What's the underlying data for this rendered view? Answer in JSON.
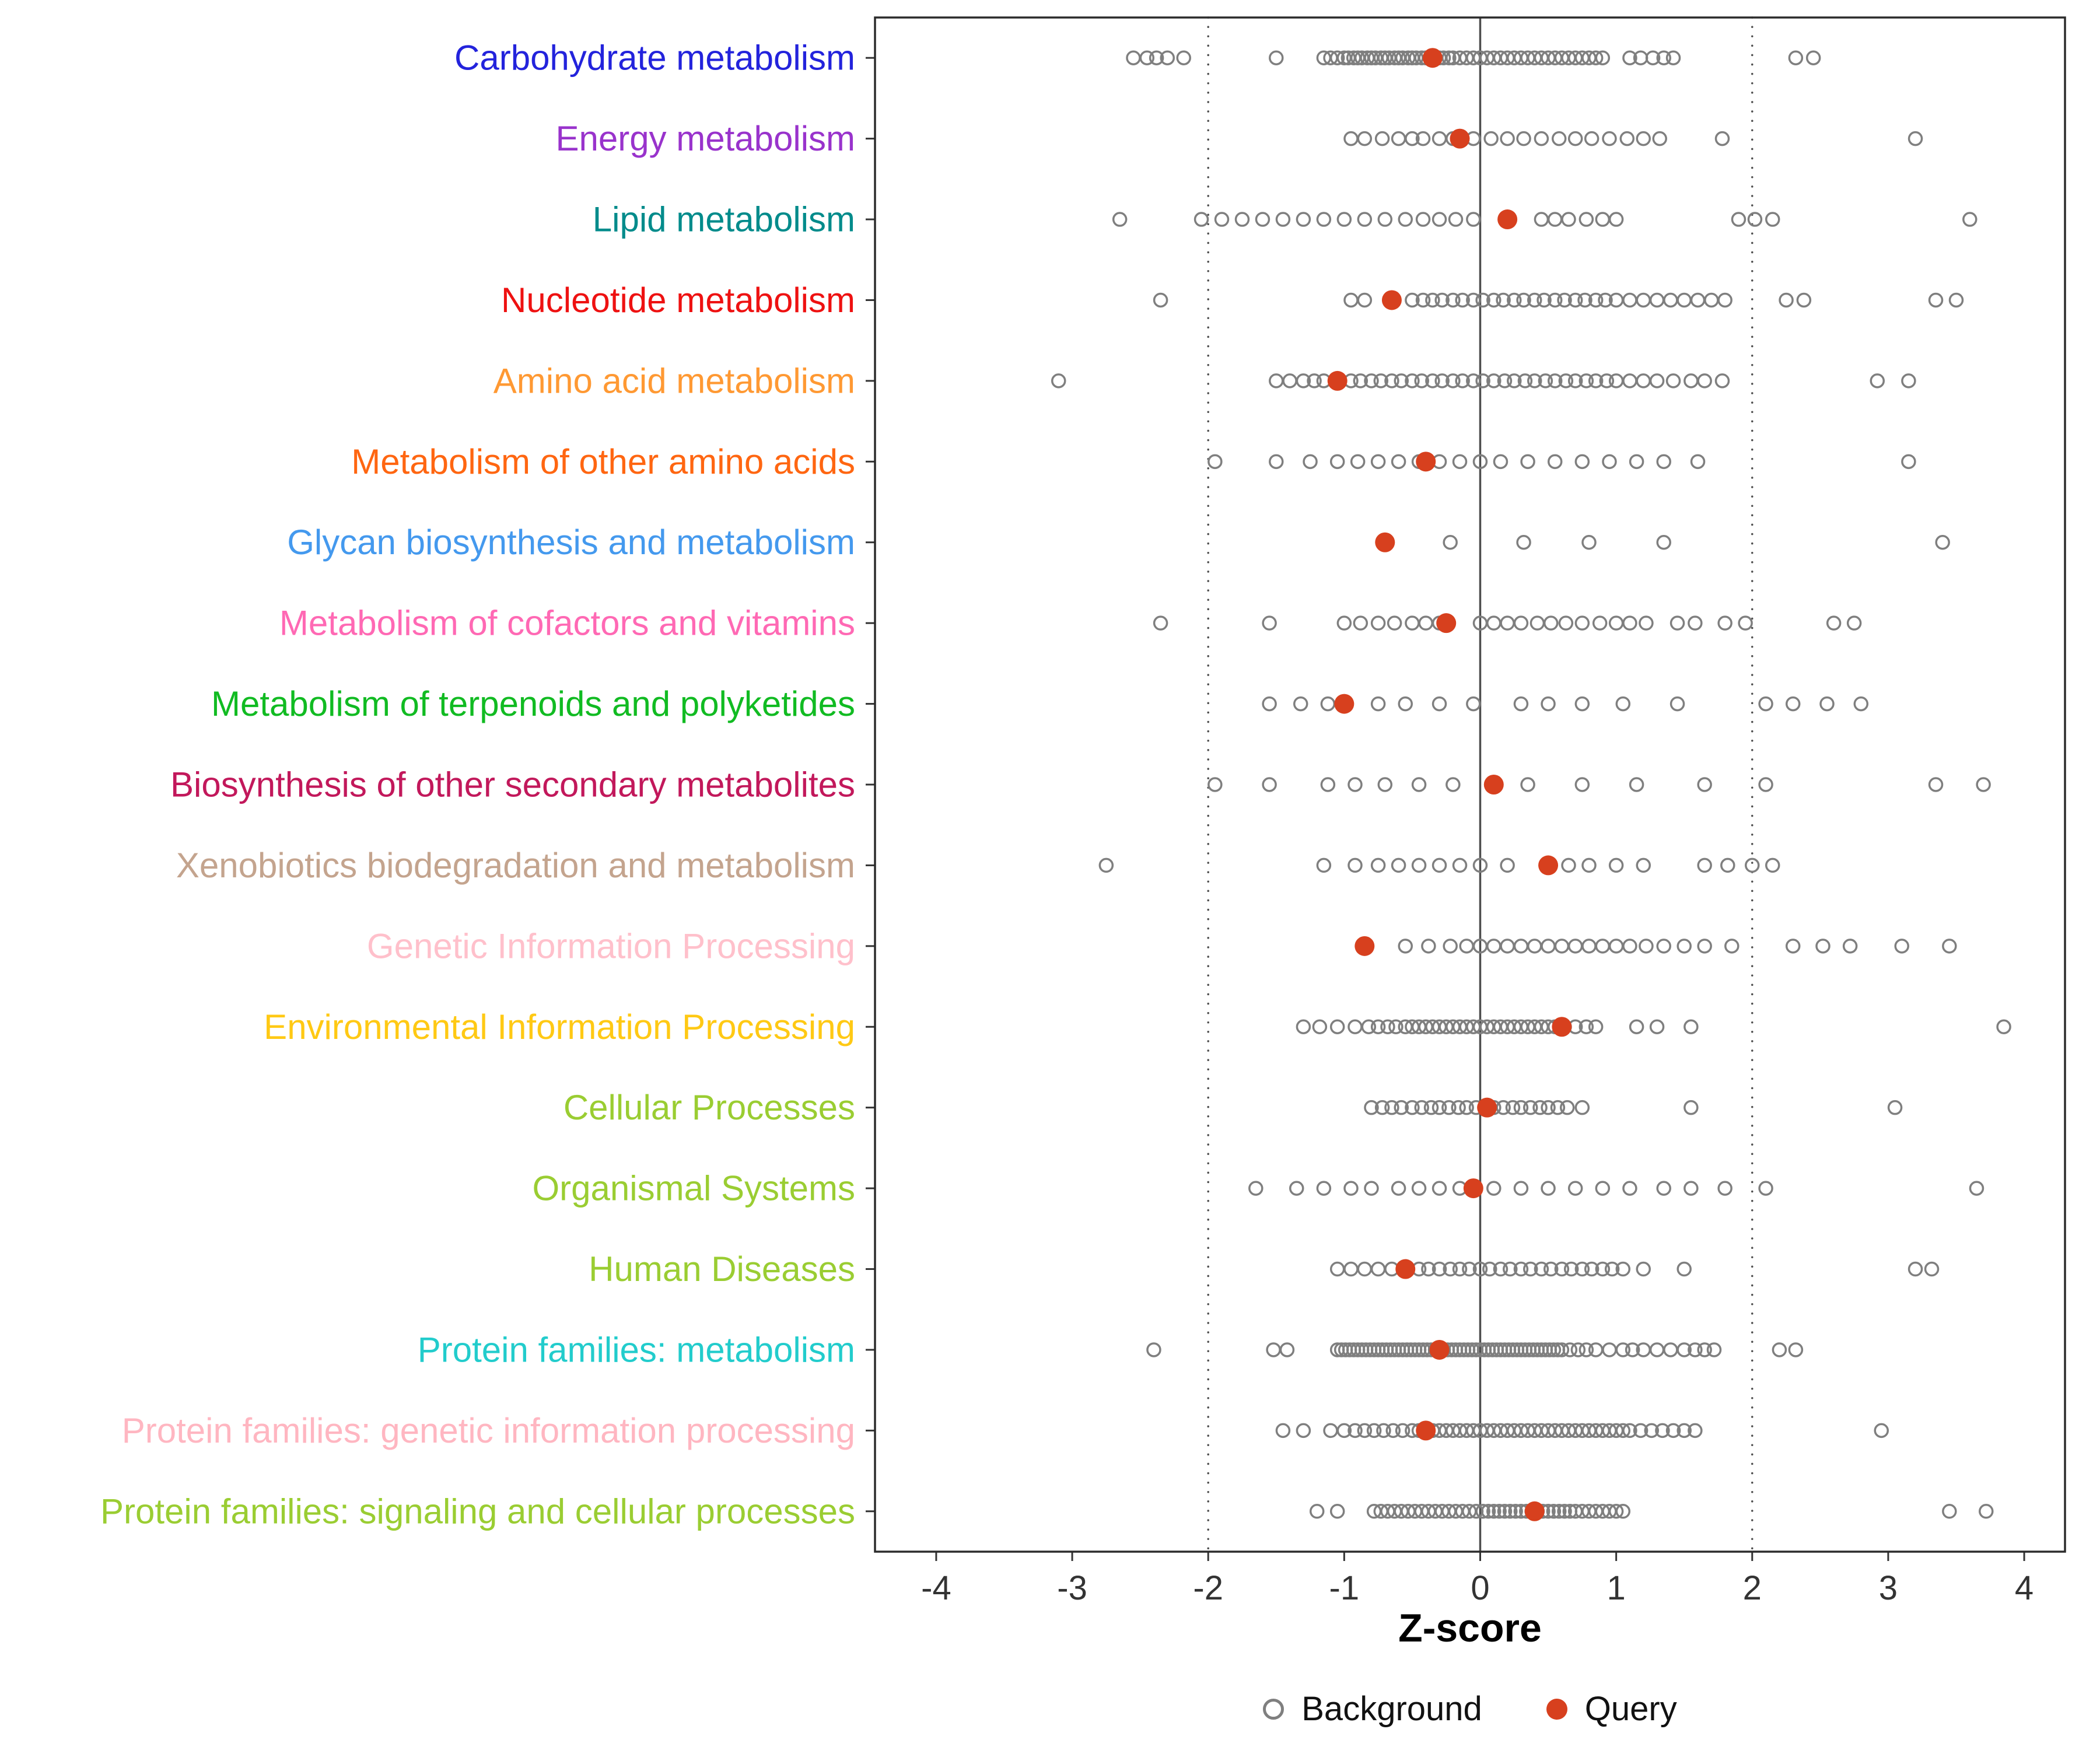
{
  "chart_data": {
    "type": "scatter",
    "title": "",
    "xlabel": "Z-score",
    "ylabel": "",
    "xlim": [
      -4.45,
      4.3
    ],
    "x_ticks": [
      -4,
      -3,
      -2,
      -1,
      0,
      1,
      2,
      3,
      4
    ],
    "grid": false,
    "reference_lines": {
      "solid": [
        0
      ],
      "dotted": [
        -2,
        2
      ]
    },
    "style": {
      "background_marker_color": "#7F7F7F",
      "query_marker_color": "#D7401E",
      "axis_text_color": "#333333",
      "panel_border_color": "#2B2B2B",
      "reference_line_color": "#4D4D4D"
    },
    "legend": [
      {
        "label": "Background",
        "marker": "open-circle",
        "color": "#7F7F7F"
      },
      {
        "label": "Query",
        "marker": "filled-circle",
        "color": "#D7401E"
      }
    ],
    "rows": [
      {
        "category": "Carbohydrate metabolism",
        "color": "#2323DC",
        "query": -0.35,
        "background": [
          -2.55,
          -2.45,
          -2.38,
          -2.3,
          -2.18,
          -1.5,
          -1.15,
          -1.1,
          -1.05,
          -1.0,
          -0.97,
          -0.93,
          -0.9,
          -0.87,
          -0.83,
          -0.8,
          -0.77,
          -0.73,
          -0.7,
          -0.67,
          -0.63,
          -0.6,
          -0.57,
          -0.53,
          -0.5,
          -0.47,
          -0.43,
          -0.4,
          -0.37,
          -0.33,
          -0.3,
          -0.27,
          -0.23,
          -0.2,
          -0.15,
          -0.1,
          -0.05,
          0.0,
          0.05,
          0.1,
          0.15,
          0.2,
          0.25,
          0.3,
          0.35,
          0.4,
          0.45,
          0.5,
          0.55,
          0.6,
          0.65,
          0.7,
          0.75,
          0.8,
          0.85,
          0.9,
          1.1,
          1.18,
          1.27,
          1.35,
          1.42,
          2.32,
          2.45
        ]
      },
      {
        "category": "Energy metabolism",
        "color": "#9933CC",
        "query": -0.15,
        "background": [
          -0.95,
          -0.85,
          -0.72,
          -0.6,
          -0.5,
          -0.42,
          -0.3,
          -0.2,
          -0.05,
          0.08,
          0.2,
          0.32,
          0.45,
          0.58,
          0.7,
          0.82,
          0.95,
          1.08,
          1.2,
          1.32,
          1.78,
          3.2
        ]
      },
      {
        "category": "Lipid metabolism",
        "color": "#008B8B",
        "query": 0.2,
        "background": [
          -2.65,
          -2.05,
          -1.9,
          -1.75,
          -1.6,
          -1.45,
          -1.3,
          -1.15,
          -1.0,
          -0.85,
          -0.7,
          -0.55,
          -0.42,
          -0.3,
          -0.18,
          -0.05,
          0.45,
          0.55,
          0.65,
          0.78,
          0.9,
          1.0,
          1.9,
          2.02,
          2.15,
          3.6
        ]
      },
      {
        "category": "Nucleotide metabolism",
        "color": "#EE1111",
        "query": -0.65,
        "background": [
          -2.35,
          -0.95,
          -0.85,
          -0.5,
          -0.42,
          -0.35,
          -0.28,
          -0.2,
          -0.13,
          -0.05,
          0.02,
          0.1,
          0.17,
          0.25,
          0.32,
          0.4,
          0.47,
          0.55,
          0.62,
          0.7,
          0.77,
          0.85,
          0.92,
          1.0,
          1.1,
          1.2,
          1.3,
          1.4,
          1.5,
          1.6,
          1.7,
          1.8,
          2.25,
          2.38,
          3.35,
          3.5
        ]
      },
      {
        "category": "Amino acid metabolism",
        "color": "#FF9933",
        "query": -1.05,
        "background": [
          -3.1,
          -1.5,
          -1.4,
          -1.3,
          -1.22,
          -1.15,
          -0.95,
          -0.88,
          -0.8,
          -0.73,
          -0.65,
          -0.58,
          -0.5,
          -0.43,
          -0.35,
          -0.28,
          -0.2,
          -0.13,
          -0.05,
          0.02,
          0.1,
          0.18,
          0.25,
          0.33,
          0.4,
          0.48,
          0.55,
          0.63,
          0.7,
          0.78,
          0.85,
          0.93,
          1.0,
          1.1,
          1.2,
          1.3,
          1.42,
          1.55,
          1.65,
          1.78,
          2.92,
          3.15
        ]
      },
      {
        "category": "Metabolism of other amino acids",
        "color": "#FF6611",
        "query": -0.4,
        "background": [
          -1.95,
          -1.5,
          -1.25,
          -1.05,
          -0.9,
          -0.75,
          -0.6,
          -0.45,
          -0.3,
          -0.15,
          0.0,
          0.15,
          0.35,
          0.55,
          0.75,
          0.95,
          1.15,
          1.35,
          1.6,
          3.15
        ]
      },
      {
        "category": "Glycan biosynthesis and metabolism",
        "color": "#4499EE",
        "query": -0.7,
        "background": [
          -0.22,
          0.32,
          0.8,
          1.35,
          3.4
        ]
      },
      {
        "category": "Metabolism of cofactors and vitamins",
        "color": "#FF69B4",
        "query": -0.25,
        "background": [
          -2.35,
          -1.55,
          -1.0,
          -0.88,
          -0.75,
          -0.63,
          -0.5,
          -0.4,
          -0.3,
          0.0,
          0.1,
          0.2,
          0.3,
          0.42,
          0.52,
          0.63,
          0.75,
          0.88,
          1.0,
          1.1,
          1.22,
          1.45,
          1.58,
          1.8,
          1.95,
          2.6,
          2.75
        ]
      },
      {
        "category": "Metabolism of terpenoids and polyketides",
        "color": "#11BB22",
        "query": -1.0,
        "background": [
          -1.55,
          -1.32,
          -1.12,
          -0.75,
          -0.55,
          -0.3,
          -0.05,
          0.3,
          0.5,
          0.75,
          1.05,
          1.45,
          2.1,
          2.3,
          2.55,
          2.8
        ]
      },
      {
        "category": "Biosynthesis of other secondary metabolites",
        "color": "#C2185B",
        "query": 0.1,
        "background": [
          -1.95,
          -1.55,
          -1.12,
          -0.92,
          -0.7,
          -0.45,
          -0.2,
          0.35,
          0.75,
          1.15,
          1.65,
          2.1,
          3.35,
          3.7
        ]
      },
      {
        "category": "Xenobiotics biodegradation and metabolism",
        "color": "#C4A48E",
        "query": 0.5,
        "background": [
          -2.75,
          -1.15,
          -0.92,
          -0.75,
          -0.6,
          -0.45,
          -0.3,
          -0.15,
          0.0,
          0.2,
          0.65,
          0.8,
          1.0,
          1.2,
          1.65,
          1.82,
          2.0,
          2.15
        ]
      },
      {
        "category": "Genetic Information Processing",
        "color": "#FFC0CB",
        "query": -0.85,
        "background": [
          -0.55,
          -0.38,
          -0.22,
          -0.1,
          0.0,
          0.1,
          0.2,
          0.3,
          0.4,
          0.5,
          0.6,
          0.7,
          0.8,
          0.9,
          1.0,
          1.1,
          1.22,
          1.35,
          1.5,
          1.65,
          1.85,
          2.3,
          2.52,
          2.72,
          3.1,
          3.45
        ]
      },
      {
        "category": "Environmental Information Processing",
        "color": "#FFC914",
        "query": 0.6,
        "background": [
          -1.3,
          -1.18,
          -1.05,
          -0.92,
          -0.82,
          -0.75,
          -0.68,
          -0.62,
          -0.55,
          -0.5,
          -0.45,
          -0.4,
          -0.35,
          -0.3,
          -0.25,
          -0.2,
          -0.15,
          -0.1,
          -0.05,
          0.0,
          0.05,
          0.1,
          0.15,
          0.2,
          0.25,
          0.3,
          0.35,
          0.4,
          0.45,
          0.5,
          0.55,
          0.62,
          0.7,
          0.78,
          0.85,
          1.15,
          1.3,
          1.55,
          3.85
        ]
      },
      {
        "category": "Cellular Processes",
        "color": "#9ACD32",
        "query": 0.05,
        "background": [
          -0.8,
          -0.72,
          -0.65,
          -0.58,
          -0.5,
          -0.43,
          -0.36,
          -0.3,
          -0.23,
          -0.16,
          -0.1,
          -0.03,
          0.1,
          0.17,
          0.24,
          0.3,
          0.37,
          0.44,
          0.5,
          0.57,
          0.64,
          0.75,
          1.55,
          3.05
        ]
      },
      {
        "category": "Organismal Systems",
        "color": "#9ACD32",
        "query": -0.05,
        "background": [
          -1.65,
          -1.35,
          -1.15,
          -0.95,
          -0.8,
          -0.6,
          -0.45,
          -0.3,
          -0.15,
          0.1,
          0.3,
          0.5,
          0.7,
          0.9,
          1.1,
          1.35,
          1.55,
          1.8,
          2.1,
          3.65
        ]
      },
      {
        "category": "Human Diseases",
        "color": "#9ACD32",
        "query": -0.55,
        "background": [
          -1.05,
          -0.95,
          -0.85,
          -0.75,
          -0.65,
          -0.45,
          -0.38,
          -0.3,
          -0.22,
          -0.15,
          -0.08,
          0.0,
          0.07,
          0.15,
          0.22,
          0.3,
          0.37,
          0.45,
          0.52,
          0.6,
          0.67,
          0.75,
          0.82,
          0.9,
          0.97,
          1.05,
          1.2,
          1.5,
          3.2,
          3.32
        ]
      },
      {
        "category": "Protein families: metabolism",
        "color": "#22CCCC",
        "query": -0.3,
        "background": [
          -2.4,
          -1.52,
          -1.42,
          -1.05,
          -1.02,
          -0.99,
          -0.96,
          -0.93,
          -0.9,
          -0.87,
          -0.84,
          -0.81,
          -0.78,
          -0.75,
          -0.72,
          -0.69,
          -0.66,
          -0.63,
          -0.6,
          -0.57,
          -0.54,
          -0.51,
          -0.48,
          -0.45,
          -0.42,
          -0.39,
          -0.36,
          -0.33,
          -0.3,
          -0.27,
          -0.24,
          -0.21,
          -0.18,
          -0.15,
          -0.12,
          -0.09,
          -0.06,
          -0.03,
          0.0,
          0.03,
          0.06,
          0.09,
          0.12,
          0.15,
          0.18,
          0.21,
          0.24,
          0.27,
          0.3,
          0.33,
          0.36,
          0.39,
          0.42,
          0.45,
          0.48,
          0.51,
          0.54,
          0.57,
          0.6,
          0.66,
          0.72,
          0.78,
          0.85,
          0.95,
          1.05,
          1.12,
          1.2,
          1.3,
          1.4,
          1.5,
          1.58,
          1.65,
          1.72,
          2.2,
          2.32
        ]
      },
      {
        "category": "Protein families: genetic information processing",
        "color": "#FFB6C1",
        "query": -0.4,
        "background": [
          -1.45,
          -1.3,
          -1.1,
          -1.0,
          -0.92,
          -0.85,
          -0.78,
          -0.71,
          -0.64,
          -0.57,
          -0.5,
          -0.45,
          -0.4,
          -0.35,
          -0.3,
          -0.25,
          -0.2,
          -0.15,
          -0.1,
          -0.05,
          0.0,
          0.05,
          0.1,
          0.15,
          0.2,
          0.25,
          0.3,
          0.35,
          0.4,
          0.45,
          0.5,
          0.55,
          0.6,
          0.65,
          0.7,
          0.75,
          0.8,
          0.85,
          0.9,
          0.95,
          1.0,
          1.05,
          1.1,
          1.18,
          1.26,
          1.34,
          1.42,
          1.5,
          1.58,
          2.95
        ]
      },
      {
        "category": "Protein families: signaling and cellular processes",
        "color": "#9ACD32",
        "query": 0.4,
        "background": [
          -1.2,
          -1.05,
          -0.78,
          -0.73,
          -0.68,
          -0.63,
          -0.58,
          -0.53,
          -0.48,
          -0.43,
          -0.38,
          -0.33,
          -0.28,
          -0.23,
          -0.18,
          -0.13,
          -0.08,
          -0.03,
          0.02,
          0.06,
          0.1,
          0.14,
          0.18,
          0.22,
          0.26,
          0.3,
          0.34,
          0.38,
          0.42,
          0.46,
          0.5,
          0.54,
          0.58,
          0.62,
          0.66,
          0.7,
          0.75,
          0.8,
          0.85,
          0.9,
          0.95,
          1.0,
          1.05,
          3.45,
          3.72
        ]
      }
    ]
  }
}
